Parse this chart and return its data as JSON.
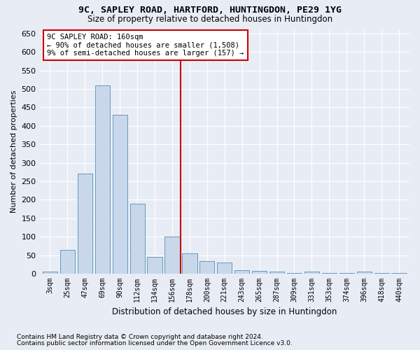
{
  "title": "9C, SAPLEY ROAD, HARTFORD, HUNTINGDON, PE29 1YG",
  "subtitle": "Size of property relative to detached houses in Huntingdon",
  "xlabel": "Distribution of detached houses by size in Huntingdon",
  "ylabel": "Number of detached properties",
  "footnote1": "Contains HM Land Registry data © Crown copyright and database right 2024.",
  "footnote2": "Contains public sector information licensed under the Open Government Licence v3.0.",
  "bar_labels": [
    "3sqm",
    "25sqm",
    "47sqm",
    "69sqm",
    "90sqm",
    "112sqm",
    "134sqm",
    "156sqm",
    "178sqm",
    "200sqm",
    "221sqm",
    "243sqm",
    "265sqm",
    "287sqm",
    "309sqm",
    "331sqm",
    "353sqm",
    "374sqm",
    "396sqm",
    "418sqm",
    "440sqm"
  ],
  "bar_values": [
    5,
    65,
    270,
    510,
    430,
    190,
    45,
    100,
    55,
    35,
    30,
    10,
    8,
    5,
    2,
    5,
    2,
    2,
    5,
    2,
    2
  ],
  "bar_color": "#c8d8ea",
  "bar_edgecolor": "#6699bb",
  "background_color": "#e8edf5",
  "grid_color": "#ffffff",
  "vline_color": "#cc0000",
  "vline_x": 7.5,
  "ylim": [
    0,
    660
  ],
  "yticks": [
    0,
    50,
    100,
    150,
    200,
    250,
    300,
    350,
    400,
    450,
    500,
    550,
    600,
    650
  ]
}
